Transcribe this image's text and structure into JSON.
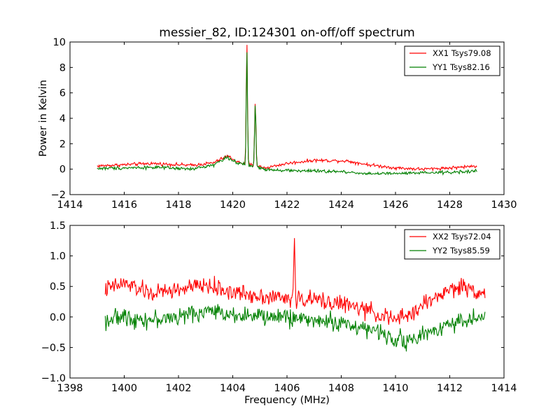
{
  "chart_data": [
    {
      "type": "line",
      "title": "messier_82, ID:124301 on-off/off spectrum",
      "xlabel": "",
      "ylabel": "Power in Kelvin",
      "xlim": [
        1414,
        1430
      ],
      "ylim": [
        -2,
        10
      ],
      "xticks": [
        "1414",
        "1416",
        "1418",
        "1420",
        "1422",
        "1424",
        "1426",
        "1428",
        "1430"
      ],
      "yticks": [
        "−2",
        "0",
        "2",
        "4",
        "6",
        "8",
        "10"
      ],
      "legend_position": "top-right",
      "x_range": [
        1415.0,
        1429.0
      ],
      "series": [
        {
          "name": "XX1 Tsys79.08",
          "color": "#ff0000",
          "noise": 0.09,
          "baseline": [
            [
              1415.0,
              0.25
            ],
            [
              1417.0,
              0.45
            ],
            [
              1418.5,
              0.3
            ],
            [
              1419.3,
              0.5
            ],
            [
              1419.8,
              1.05
            ],
            [
              1420.2,
              0.55
            ],
            [
              1421.2,
              0.1
            ],
            [
              1422.0,
              0.45
            ],
            [
              1423.0,
              0.7
            ],
            [
              1424.2,
              0.65
            ],
            [
              1425.0,
              0.35
            ],
            [
              1426.0,
              0.1
            ],
            [
              1427.0,
              0.0
            ],
            [
              1428.0,
              0.1
            ],
            [
              1429.0,
              0.25
            ]
          ],
          "peaks": [
            [
              1420.52,
              9.6,
              0.022
            ],
            [
              1420.83,
              5.0,
              0.025
            ]
          ]
        },
        {
          "name": "YY1 Tsys82.16",
          "color": "#008000",
          "noise": 0.09,
          "baseline": [
            [
              1415.0,
              0.05
            ],
            [
              1416.0,
              0.1
            ],
            [
              1417.0,
              0.15
            ],
            [
              1418.5,
              0.0
            ],
            [
              1419.3,
              0.35
            ],
            [
              1419.8,
              0.95
            ],
            [
              1420.2,
              0.45
            ],
            [
              1421.2,
              0.0
            ],
            [
              1422.0,
              -0.1
            ],
            [
              1424.0,
              -0.2
            ],
            [
              1425.0,
              -0.35
            ],
            [
              1426.0,
              -0.35
            ],
            [
              1427.0,
              -0.3
            ],
            [
              1428.0,
              -0.25
            ],
            [
              1429.0,
              -0.15
            ]
          ],
          "peaks": [
            [
              1420.52,
              9.2,
              0.022
            ],
            [
              1420.83,
              4.9,
              0.025
            ]
          ]
        }
      ]
    },
    {
      "type": "line",
      "title": "",
      "xlabel": "Frequency (MHz)",
      "ylabel": "",
      "xlim": [
        1398,
        1414
      ],
      "ylim": [
        -1.0,
        1.5
      ],
      "xticks": [
        "1398",
        "1400",
        "1402",
        "1404",
        "1406",
        "1408",
        "1410",
        "1412",
        "1414"
      ],
      "yticks": [
        "−1.0",
        "−0.5",
        "0.0",
        "0.5",
        "1.0",
        "1.5"
      ],
      "legend_position": "top-right",
      "x_range": [
        1399.3,
        1413.3
      ],
      "series": [
        {
          "name": "XX2 Tsys72.04",
          "color": "#ff0000",
          "noise": 0.1,
          "baseline": [
            [
              1399.3,
              0.45
            ],
            [
              1400.0,
              0.55
            ],
            [
              1401.0,
              0.38
            ],
            [
              1402.0,
              0.45
            ],
            [
              1403.0,
              0.52
            ],
            [
              1404.0,
              0.4
            ],
            [
              1405.0,
              0.35
            ],
            [
              1406.0,
              0.3
            ],
            [
              1407.0,
              0.28
            ],
            [
              1408.0,
              0.22
            ],
            [
              1409.0,
              0.1
            ],
            [
              1410.0,
              -0.05
            ],
            [
              1410.6,
              0.05
            ],
            [
              1411.0,
              0.2
            ],
            [
              1412.0,
              0.45
            ],
            [
              1412.5,
              0.5
            ],
            [
              1413.3,
              0.38
            ]
          ],
          "peaks": [
            [
              1406.27,
              1.1,
              0.02
            ]
          ]
        },
        {
          "name": "YY2 Tsys85.59",
          "color": "#008000",
          "noise": 0.1,
          "baseline": [
            [
              1399.3,
              -0.05
            ],
            [
              1400.0,
              0.0
            ],
            [
              1401.0,
              -0.05
            ],
            [
              1402.0,
              0.0
            ],
            [
              1403.0,
              0.1
            ],
            [
              1404.0,
              0.05
            ],
            [
              1405.0,
              0.0
            ],
            [
              1406.0,
              0.0
            ],
            [
              1407.0,
              -0.05
            ],
            [
              1408.0,
              -0.1
            ],
            [
              1409.0,
              -0.2
            ],
            [
              1410.0,
              -0.35
            ],
            [
              1410.6,
              -0.4
            ],
            [
              1411.0,
              -0.3
            ],
            [
              1412.0,
              -0.1
            ],
            [
              1413.3,
              0.0
            ]
          ],
          "peaks": []
        }
      ]
    }
  ]
}
